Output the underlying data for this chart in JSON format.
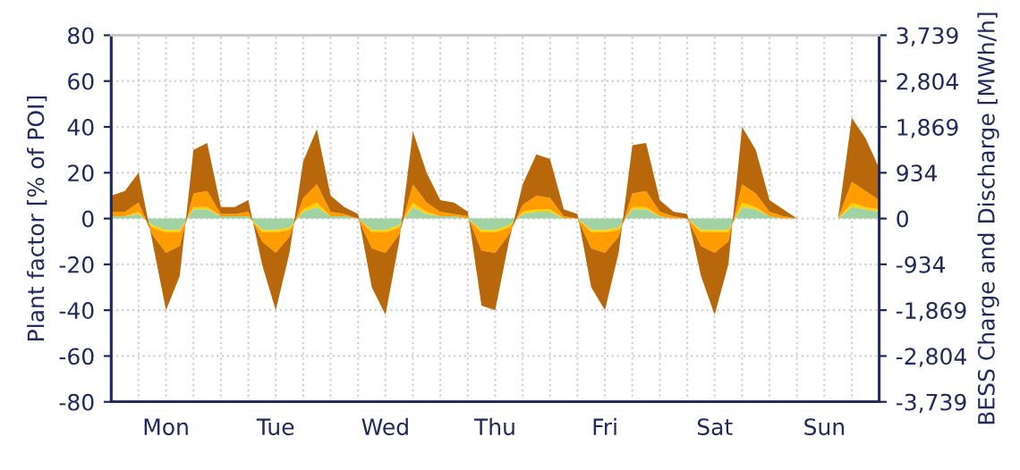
{
  "chart_data": {
    "type": "area",
    "stacked": true,
    "ylabel": "Plant factor [% of POI]",
    "y2label": "BESS Charge and Discharge [MWh/h]",
    "categories": [
      null,
      null,
      null,
      null,
      "Mon",
      null,
      null,
      null,
      null,
      null,
      null,
      null,
      "Tue",
      null,
      null,
      null,
      null,
      null,
      null,
      null,
      "Wed",
      null,
      null,
      null,
      null,
      null,
      null,
      null,
      "Thu",
      null,
      null,
      null,
      null,
      null,
      null,
      null,
      "Fri",
      null,
      null,
      null,
      null,
      null,
      null,
      null,
      "Sat",
      null,
      null,
      null,
      null,
      null,
      null,
      null,
      "Sun",
      null,
      null,
      null,
      null
    ],
    "series": [
      {
        "color": "#a0d2a4",
        "values": [
          1,
          1,
          2,
          -3,
          -5,
          -5,
          4,
          4,
          1,
          1,
          1,
          -5,
          -5,
          -4,
          3,
          5,
          1,
          1,
          0,
          -5,
          -5,
          -3,
          5,
          2,
          1,
          1,
          0,
          -5,
          -5,
          -3,
          2,
          3,
          3,
          0,
          0,
          -5,
          -5,
          -4,
          4,
          4,
          1,
          0,
          0,
          -5,
          -5,
          -5,
          5,
          4,
          1,
          0,
          0,
          0,
          0,
          0,
          5,
          4,
          3
        ]
      },
      {
        "color": "#ffd200",
        "values": [
          0,
          0,
          1,
          -1,
          -1,
          -1,
          1,
          1,
          0,
          0,
          0,
          -1,
          -1,
          -1,
          1,
          2,
          0,
          0,
          0,
          -1,
          -1,
          -1,
          2,
          1,
          0,
          0,
          0,
          -1,
          -1,
          -1,
          1,
          1,
          1,
          0,
          0,
          -1,
          -1,
          -1,
          1,
          1,
          0,
          0,
          0,
          -1,
          -1,
          -1,
          2,
          1,
          0,
          0,
          0,
          0,
          0,
          0,
          2,
          1,
          1
        ]
      },
      {
        "color": "#ff9c00",
        "values": [
          2,
          2,
          4,
          -3,
          -9,
          -6,
          6,
          7,
          1,
          1,
          2,
          -4,
          -9,
          -3,
          5,
          8,
          2,
          1,
          0,
          -7,
          -9,
          -3,
          8,
          4,
          2,
          1,
          1,
          -8,
          -9,
          -3,
          3,
          6,
          5,
          1,
          0,
          -7,
          -9,
          -3,
          6,
          7,
          2,
          1,
          0,
          -6,
          -9,
          -4,
          8,
          6,
          2,
          1,
          0,
          0,
          0,
          0,
          9,
          7,
          4
        ]
      },
      {
        "color": "#b8680a",
        "values": [
          7,
          9,
          13,
          -3,
          -25,
          -13,
          19,
          21,
          3,
          3,
          5,
          -10,
          -25,
          -7,
          16,
          24,
          7,
          3,
          2,
          -17,
          -27,
          -3,
          23,
          13,
          5,
          5,
          2,
          -24,
          -25,
          -3,
          9,
          18,
          17,
          3,
          2,
          -17,
          -25,
          -7,
          21,
          21,
          5,
          2,
          2,
          -13,
          -27,
          -10,
          25,
          19,
          5,
          3,
          0,
          0,
          0,
          0,
          28,
          23,
          14
        ]
      }
    ],
    "ylim": [
      -80,
      80
    ],
    "yticks": [
      -80,
      -60,
      -40,
      -20,
      0,
      20,
      40,
      60,
      80
    ],
    "y2lim": [
      -3739,
      3739
    ],
    "y2ticks": [
      {
        "value": -3739,
        "label": "-3,739"
      },
      {
        "value": -2804,
        "label": "-2,804"
      },
      {
        "value": -1869,
        "label": "-1,869"
      },
      {
        "value": -934,
        "label": "-934"
      },
      0,
      {
        "value": 934,
        "label": "934"
      },
      {
        "value": 1869,
        "label": "1,869"
      },
      {
        "value": 2804,
        "label": "2,804"
      },
      {
        "value": 3739,
        "label": "3,739"
      }
    ],
    "grid": true
  }
}
